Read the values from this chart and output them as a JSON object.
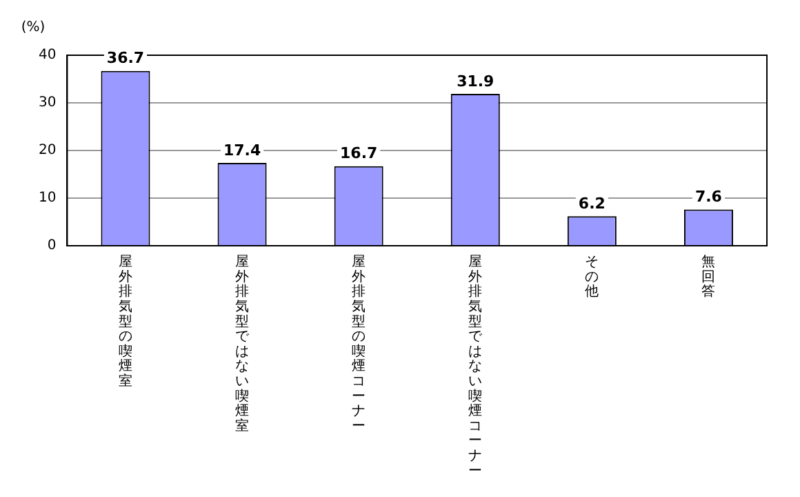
{
  "chart_data": {
    "type": "bar",
    "ylabel": "(%)",
    "categories": [
      "屋外排気型の喫煙室",
      "屋外排気型ではない喫煙室",
      "屋外排気型の喫煙コーナー",
      "屋外排気型ではない喫煙コーナー",
      "その他",
      "無回答"
    ],
    "values": [
      36.7,
      17.4,
      16.7,
      31.9,
      6.2,
      7.6
    ],
    "color": "#9999ff",
    "ylim": [
      0,
      40
    ],
    "yticks": [
      0,
      10,
      20,
      30,
      40
    ],
    "grid": "y",
    "data_labels": true
  }
}
